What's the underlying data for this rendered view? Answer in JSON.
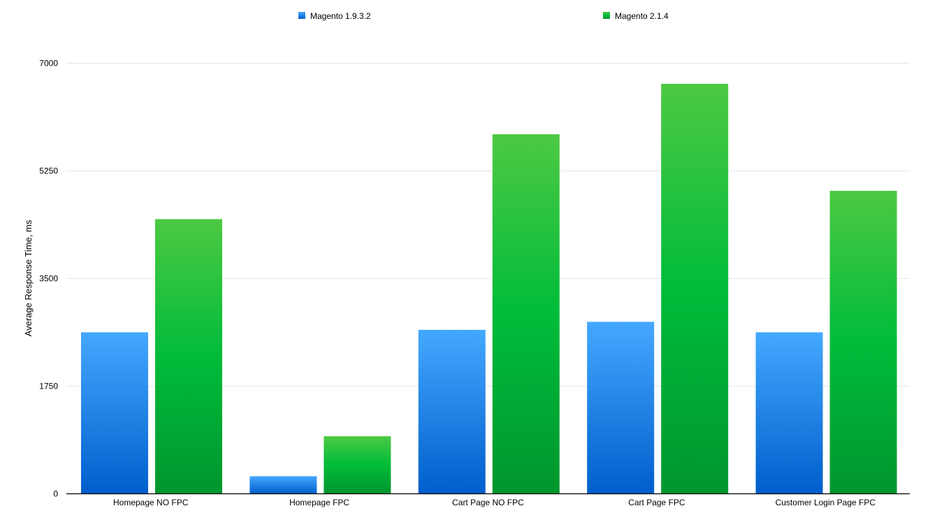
{
  "chart_data": {
    "type": "bar",
    "title": "",
    "xlabel": "",
    "ylabel": "Average Response Time, ms",
    "ylim": [
      0,
      7000
    ],
    "yticks": [
      0,
      1750,
      3500,
      5250,
      7000
    ],
    "grid": true,
    "legend_position": "top",
    "categories": [
      "Homepage NO FPC",
      "Homepage FPC",
      "Cart Page NO FPC",
      "Cart Page FPC",
      "Customer Login Page FPC"
    ],
    "series": [
      {
        "name": "Magento 1.9.3.2",
        "values": [
          2620,
          280,
          2660,
          2790,
          2620
        ],
        "color": "#1a7fe0",
        "gradient": [
          "#45a8ff",
          "#005fcc"
        ]
      },
      {
        "name": "Magento 2.1.4",
        "values": [
          4460,
          930,
          5840,
          6660,
          4920
        ],
        "color": "#17b13b",
        "gradient": [
          "#4dc943",
          "#00bc3a",
          "#00962e"
        ]
      }
    ]
  }
}
